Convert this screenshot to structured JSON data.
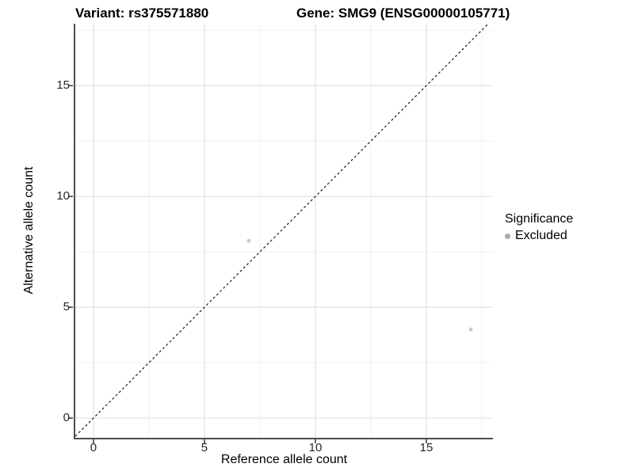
{
  "chart_data": {
    "type": "scatter",
    "title_left": "Variant: rs375571880",
    "title_right": "Gene: SMG9 (ENSG00000105771)",
    "xlabel": "Reference allele count",
    "ylabel": "Alternative allele count",
    "xlim": [
      -0.82,
      18.0
    ],
    "ylim": [
      -0.89,
      17.79
    ],
    "x_ticks": [
      0,
      5,
      10,
      15
    ],
    "y_ticks": [
      0,
      5,
      10,
      15
    ],
    "x_minor_ticks": [
      2.5,
      7.5,
      12.5,
      17.5
    ],
    "y_minor_ticks": [
      2.5,
      7.5,
      12.5,
      17.5
    ],
    "grid": "major and minor, light gray on white",
    "points": [
      {
        "x": 7,
        "y": 8,
        "series": "Excluded"
      },
      {
        "x": 17,
        "y": 4,
        "series": "Excluded"
      }
    ],
    "reference_line": {
      "equation": "y = x",
      "style": "dashed",
      "color": "#1a1a1a"
    },
    "legend": {
      "title": "Significance",
      "position": "right",
      "entries": [
        {
          "label": "Excluded",
          "color": "#ababab"
        }
      ]
    },
    "colors": {
      "point": "#c9c9c9",
      "grid_major": "#e2e2e2",
      "grid_minor": "#f0f0f0",
      "axis_line": "#4d4d4d",
      "tick_mark": "#333333",
      "text": "#000000"
    }
  }
}
